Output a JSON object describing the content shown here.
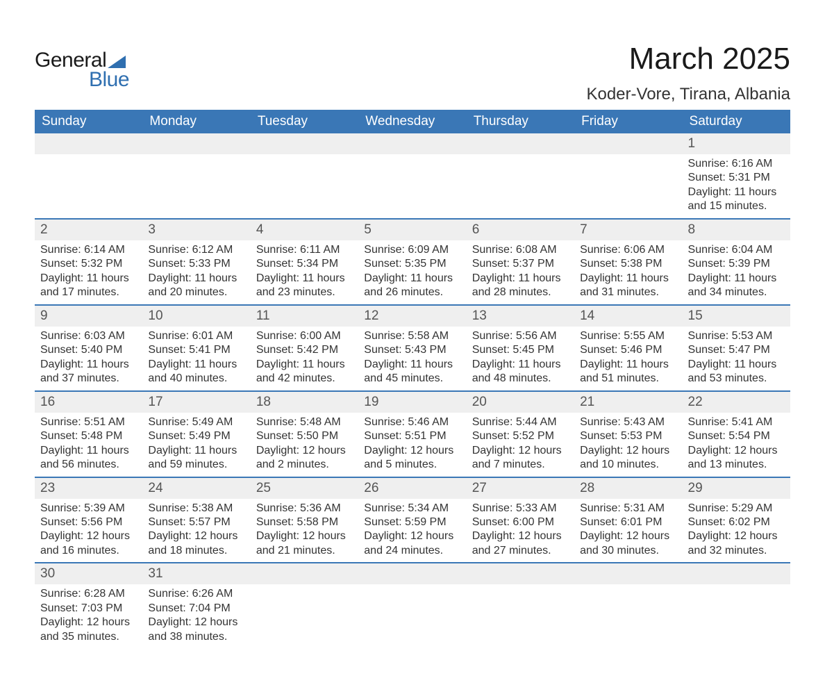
{
  "brand": {
    "word1": "General",
    "word2": "Blue"
  },
  "title": "March 2025",
  "location": "Koder-Vore, Tirana, Albania",
  "colors": {
    "header_bg": "#3a77b6",
    "header_text": "#ffffff",
    "daynum_bg": "#efefef",
    "row_divider": "#3a77b6",
    "brand_blue": "#2f6fb0"
  },
  "weekday_headers": [
    "Sunday",
    "Monday",
    "Tuesday",
    "Wednesday",
    "Thursday",
    "Friday",
    "Saturday"
  ],
  "labels": {
    "sunrise": "Sunrise",
    "sunset": "Sunset",
    "daylight": "Daylight"
  },
  "weeks": [
    [
      null,
      null,
      null,
      null,
      null,
      null,
      {
        "day": 1,
        "sunrise": "6:16 AM",
        "sunset": "5:31 PM",
        "daylight": "11 hours and 15 minutes."
      }
    ],
    [
      {
        "day": 2,
        "sunrise": "6:14 AM",
        "sunset": "5:32 PM",
        "daylight": "11 hours and 17 minutes."
      },
      {
        "day": 3,
        "sunrise": "6:12 AM",
        "sunset": "5:33 PM",
        "daylight": "11 hours and 20 minutes."
      },
      {
        "day": 4,
        "sunrise": "6:11 AM",
        "sunset": "5:34 PM",
        "daylight": "11 hours and 23 minutes."
      },
      {
        "day": 5,
        "sunrise": "6:09 AM",
        "sunset": "5:35 PM",
        "daylight": "11 hours and 26 minutes."
      },
      {
        "day": 6,
        "sunrise": "6:08 AM",
        "sunset": "5:37 PM",
        "daylight": "11 hours and 28 minutes."
      },
      {
        "day": 7,
        "sunrise": "6:06 AM",
        "sunset": "5:38 PM",
        "daylight": "11 hours and 31 minutes."
      },
      {
        "day": 8,
        "sunrise": "6:04 AM",
        "sunset": "5:39 PM",
        "daylight": "11 hours and 34 minutes."
      }
    ],
    [
      {
        "day": 9,
        "sunrise": "6:03 AM",
        "sunset": "5:40 PM",
        "daylight": "11 hours and 37 minutes."
      },
      {
        "day": 10,
        "sunrise": "6:01 AM",
        "sunset": "5:41 PM",
        "daylight": "11 hours and 40 minutes."
      },
      {
        "day": 11,
        "sunrise": "6:00 AM",
        "sunset": "5:42 PM",
        "daylight": "11 hours and 42 minutes."
      },
      {
        "day": 12,
        "sunrise": "5:58 AM",
        "sunset": "5:43 PM",
        "daylight": "11 hours and 45 minutes."
      },
      {
        "day": 13,
        "sunrise": "5:56 AM",
        "sunset": "5:45 PM",
        "daylight": "11 hours and 48 minutes."
      },
      {
        "day": 14,
        "sunrise": "5:55 AM",
        "sunset": "5:46 PM",
        "daylight": "11 hours and 51 minutes."
      },
      {
        "day": 15,
        "sunrise": "5:53 AM",
        "sunset": "5:47 PM",
        "daylight": "11 hours and 53 minutes."
      }
    ],
    [
      {
        "day": 16,
        "sunrise": "5:51 AM",
        "sunset": "5:48 PM",
        "daylight": "11 hours and 56 minutes."
      },
      {
        "day": 17,
        "sunrise": "5:49 AM",
        "sunset": "5:49 PM",
        "daylight": "11 hours and 59 minutes."
      },
      {
        "day": 18,
        "sunrise": "5:48 AM",
        "sunset": "5:50 PM",
        "daylight": "12 hours and 2 minutes."
      },
      {
        "day": 19,
        "sunrise": "5:46 AM",
        "sunset": "5:51 PM",
        "daylight": "12 hours and 5 minutes."
      },
      {
        "day": 20,
        "sunrise": "5:44 AM",
        "sunset": "5:52 PM",
        "daylight": "12 hours and 7 minutes."
      },
      {
        "day": 21,
        "sunrise": "5:43 AM",
        "sunset": "5:53 PM",
        "daylight": "12 hours and 10 minutes."
      },
      {
        "day": 22,
        "sunrise": "5:41 AM",
        "sunset": "5:54 PM",
        "daylight": "12 hours and 13 minutes."
      }
    ],
    [
      {
        "day": 23,
        "sunrise": "5:39 AM",
        "sunset": "5:56 PM",
        "daylight": "12 hours and 16 minutes."
      },
      {
        "day": 24,
        "sunrise": "5:38 AM",
        "sunset": "5:57 PM",
        "daylight": "12 hours and 18 minutes."
      },
      {
        "day": 25,
        "sunrise": "5:36 AM",
        "sunset": "5:58 PM",
        "daylight": "12 hours and 21 minutes."
      },
      {
        "day": 26,
        "sunrise": "5:34 AM",
        "sunset": "5:59 PM",
        "daylight": "12 hours and 24 minutes."
      },
      {
        "day": 27,
        "sunrise": "5:33 AM",
        "sunset": "6:00 PM",
        "daylight": "12 hours and 27 minutes."
      },
      {
        "day": 28,
        "sunrise": "5:31 AM",
        "sunset": "6:01 PM",
        "daylight": "12 hours and 30 minutes."
      },
      {
        "day": 29,
        "sunrise": "5:29 AM",
        "sunset": "6:02 PM",
        "daylight": "12 hours and 32 minutes."
      }
    ],
    [
      {
        "day": 30,
        "sunrise": "6:28 AM",
        "sunset": "7:03 PM",
        "daylight": "12 hours and 35 minutes."
      },
      {
        "day": 31,
        "sunrise": "6:26 AM",
        "sunset": "7:04 PM",
        "daylight": "12 hours and 38 minutes."
      },
      null,
      null,
      null,
      null,
      null
    ]
  ]
}
